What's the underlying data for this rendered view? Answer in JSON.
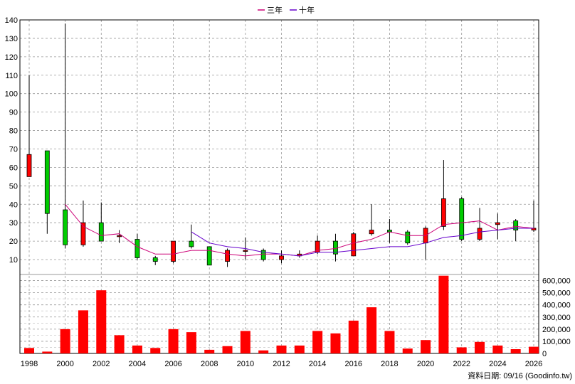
{
  "legend": [
    {
      "label": "三年",
      "color": "#cc0077"
    },
    {
      "label": "十年",
      "color": "#6600cc"
    }
  ],
  "source_note": "資料日期: 09/16 (Goodinfo.tw)",
  "chart_data": [
    {
      "type": "candlestick",
      "categories": [
        1998,
        1999,
        2000,
        2001,
        2002,
        2003,
        2004,
        2005,
        2006,
        2007,
        2008,
        2009,
        2010,
        2011,
        2012,
        2013,
        2014,
        2015,
        2016,
        2017,
        2018,
        2019,
        2020,
        2021,
        2022,
        2023,
        2024,
        2025,
        2026
      ],
      "ylim": [
        5,
        140
      ],
      "yticks": [
        10,
        20,
        30,
        40,
        50,
        60,
        70,
        80,
        90,
        100,
        110,
        120,
        130,
        140
      ],
      "grid": true,
      "candles": [
        {
          "open": 55,
          "close": 67,
          "high": 110,
          "low": 55
        },
        {
          "open": 69,
          "close": 35,
          "high": 69,
          "low": 24
        },
        {
          "open": 37,
          "close": 18,
          "high": 138,
          "low": 16
        },
        {
          "open": 18,
          "close": 30,
          "high": 42,
          "low": 17
        },
        {
          "open": 30,
          "close": 20,
          "high": 41,
          "low": 20
        },
        {
          "open": 23,
          "close": 23,
          "high": 26,
          "low": 19
        },
        {
          "open": 21,
          "close": 11,
          "high": 24,
          "low": 10
        },
        {
          "open": 11,
          "close": 9,
          "high": 12,
          "low": 7
        },
        {
          "open": 9,
          "close": 20,
          "high": 20,
          "low": 8
        },
        {
          "open": 20,
          "close": 17,
          "high": 29,
          "low": 16
        },
        {
          "open": 17,
          "close": 7,
          "high": 17,
          "low": 7
        },
        {
          "open": 9,
          "close": 15,
          "high": 16,
          "low": 6
        },
        {
          "open": 15,
          "close": 15,
          "high": 22,
          "low": 10
        },
        {
          "open": 15,
          "close": 10,
          "high": 16,
          "low": 9
        },
        {
          "open": 10,
          "close": 12,
          "high": 15,
          "low": 8
        },
        {
          "open": 12,
          "close": 13,
          "high": 15,
          "low": 11
        },
        {
          "open": 14,
          "close": 20,
          "high": 23,
          "low": 13
        },
        {
          "open": 20,
          "close": 13,
          "high": 24,
          "low": 9
        },
        {
          "open": 12,
          "close": 24,
          "high": 25,
          "low": 12
        },
        {
          "open": 24,
          "close": 26,
          "high": 40,
          "low": 23
        },
        {
          "open": 26,
          "close": 25,
          "high": 32,
          "low": 19
        },
        {
          "open": 25,
          "close": 19,
          "high": 26,
          "low": 18
        },
        {
          "open": 19,
          "close": 27,
          "high": 28,
          "low": 10
        },
        {
          "open": 28,
          "close": 43,
          "high": 64,
          "low": 26
        },
        {
          "open": 43,
          "close": 21,
          "high": 44,
          "low": 20
        },
        {
          "open": 21,
          "close": 27,
          "high": 38,
          "low": 20
        },
        {
          "open": 29,
          "close": 30,
          "high": 35,
          "low": 21
        },
        {
          "open": 31,
          "close": 26,
          "high": 32,
          "low": 20
        },
        {
          "open": 26,
          "close": 27,
          "high": 42,
          "low": 25
        }
      ],
      "series": [
        {
          "name": "三年",
          "color": "#cc0077",
          "values": [
            null,
            null,
            40,
            28,
            23,
            24,
            17,
            13,
            13,
            15,
            15,
            13,
            12,
            13,
            13,
            12,
            15,
            16,
            19,
            21,
            25,
            23,
            23,
            29,
            30,
            31,
            26,
            28,
            27
          ]
        },
        {
          "name": "十年",
          "color": "#6600cc",
          "values": [
            null,
            null,
            null,
            null,
            null,
            null,
            null,
            null,
            null,
            25,
            19,
            17,
            16,
            14,
            13,
            12,
            14,
            14,
            15,
            16,
            17,
            17,
            19,
            22,
            23,
            25,
            26,
            27,
            27
          ]
        }
      ]
    },
    {
      "type": "bar",
      "categories": [
        1998,
        1999,
        2000,
        2001,
        2002,
        2003,
        2004,
        2005,
        2006,
        2007,
        2008,
        2009,
        2010,
        2011,
        2012,
        2013,
        2014,
        2015,
        2016,
        2017,
        2018,
        2019,
        2020,
        2021,
        2022,
        2023,
        2024,
        2025,
        2026
      ],
      "values": [
        45000,
        15000,
        200000,
        355000,
        520000,
        150000,
        65000,
        45000,
        200000,
        175000,
        30000,
        60000,
        185000,
        25000,
        65000,
        65000,
        185000,
        165000,
        270000,
        380000,
        185000,
        40000,
        110000,
        640000,
        50000,
        95000,
        65000,
        35000,
        55000
      ],
      "ylim": [
        0,
        650000
      ],
      "yticks": [
        0,
        100000,
        200000,
        300000,
        400000,
        500000,
        600000
      ],
      "ytick_labels": [
        "0",
        "100,000",
        "200,000",
        "300,000",
        "400,000",
        "500,000",
        "600,000"
      ],
      "bar_color": "#ff0000",
      "grid": true
    }
  ],
  "x_tick_labels": [
    "1998",
    "2000",
    "2002",
    "2004",
    "2006",
    "2008",
    "2010",
    "2012",
    "2014",
    "2016",
    "2018",
    "2020",
    "2022",
    "2024",
    "2026"
  ]
}
